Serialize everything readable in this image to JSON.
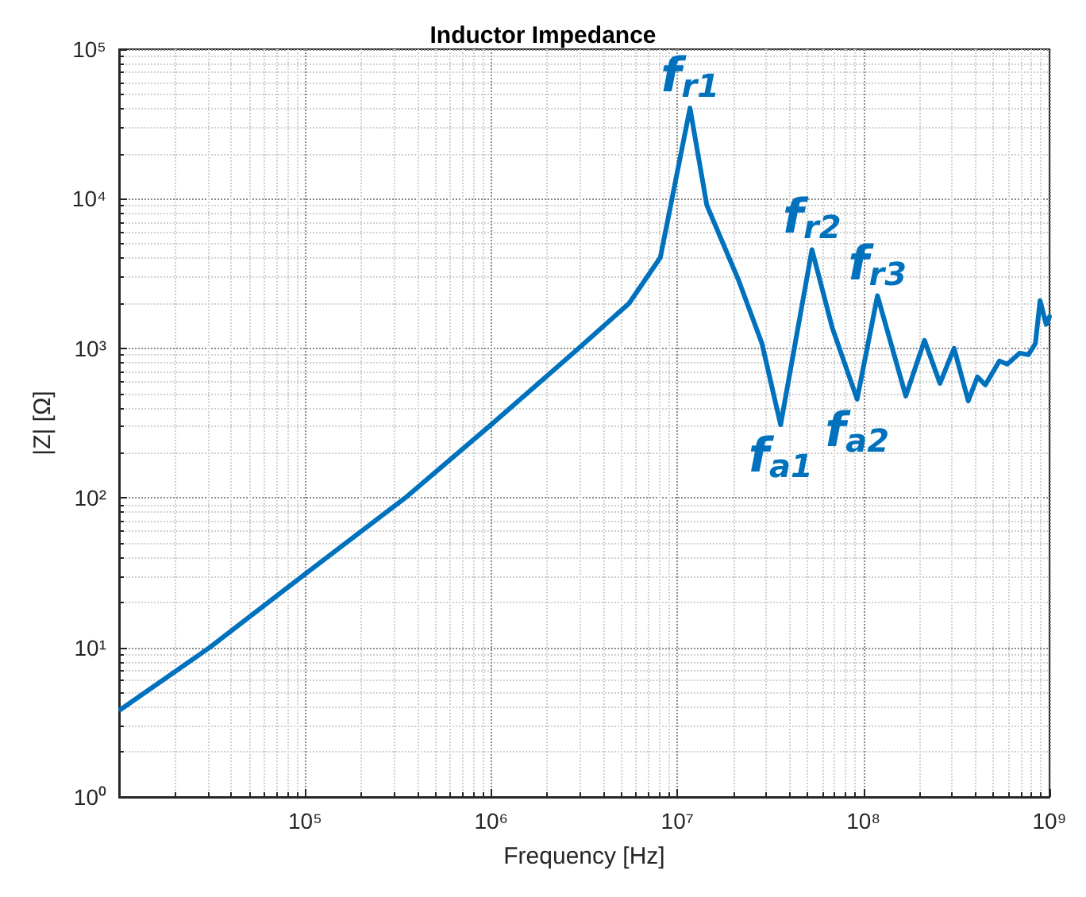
{
  "chart_data": {
    "type": "line",
    "title": "Inductor Impedance",
    "xlabel": "Frequency [Hz]",
    "ylabel": "|Z| [Ω]",
    "log": "xy",
    "grid": true,
    "marker": "none",
    "line_style": "solid",
    "xlim": [
      10000,
      1000000000
    ],
    "ylim": [
      1,
      100000
    ],
    "xticks": [
      {
        "value": 100000,
        "label": "10⁵"
      },
      {
        "value": 1000000,
        "label": "10⁶"
      },
      {
        "value": 10000000,
        "label": "10⁷"
      },
      {
        "value": 100000000,
        "label": "10⁸"
      },
      {
        "value": 1000000000,
        "label": "10⁹"
      }
    ],
    "yticks": [
      {
        "value": 1,
        "label": "10⁰"
      },
      {
        "value": 10,
        "label": "10¹"
      },
      {
        "value": 100,
        "label": "10²"
      },
      {
        "value": 1000,
        "label": "10³"
      },
      {
        "value": 10000,
        "label": "10⁴"
      },
      {
        "value": 100000,
        "label": "10⁵"
      }
    ],
    "x": [
      10200,
      30700,
      100000,
      345000,
      1000000,
      2950000,
      5500000,
      8100000,
      11700000,
      14400000,
      21300000,
      28500000,
      35900000,
      52900000,
      68000000,
      92500000,
      119000000,
      169000000,
      213000000,
      258000000,
      307000000,
      366000000,
      410000000,
      452000000,
      538000000,
      593000000,
      692000000,
      770000000,
      840000000,
      890000000,
      960000000,
      1000000000
    ],
    "series": [
      {
        "color": "#0072bd",
        "values": [
          3.85,
          10,
          31,
          100,
          309,
          1000,
          1995,
          4040,
          40400,
          9070,
          2870,
          1077,
          308,
          4570,
          1375,
          457,
          2245,
          480,
          1130,
          583,
          1000,
          445,
          644,
          569,
          822,
          783,
          929,
          906,
          1077,
          2085,
          1445,
          1630
        ]
      }
    ],
    "annotations": [
      {
        "text": "f$_{r1}$",
        "x": 11700000,
        "y": 40400
      },
      {
        "text": "f$_{a1}$",
        "x": 35900000,
        "y": 308
      },
      {
        "text": "f$_{r2}$",
        "x": 52900000,
        "y": 4570
      },
      {
        "text": "f$_{a2}$",
        "x": 92500000,
        "y": 457
      },
      {
        "text": "f$_{r3}$",
        "x": 119000000,
        "y": 2245
      }
    ]
  }
}
